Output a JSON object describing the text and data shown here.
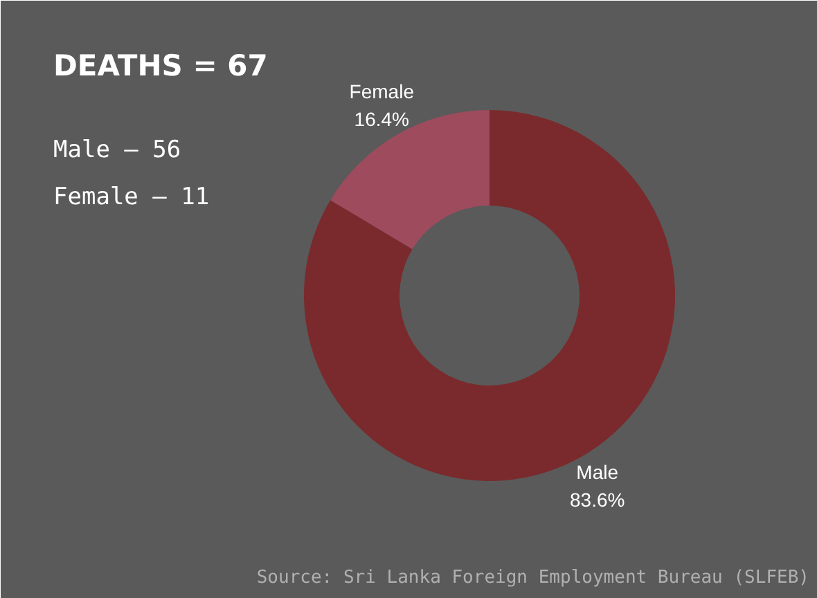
{
  "chart_data": {
    "type": "donut",
    "categories": [
      "Male",
      "Female"
    ],
    "values": [
      83.6,
      16.4
    ],
    "colors": [
      "#7a2a2c",
      "#9e4b5e"
    ],
    "value_labels": [
      "83.6%",
      "16.4%"
    ],
    "annotations": [
      "DEATHS = 67",
      "Male – 56",
      "Female – 11",
      "Source: Sri Lanka Foreign Employment Bureau (SLFEB)"
    ]
  }
}
